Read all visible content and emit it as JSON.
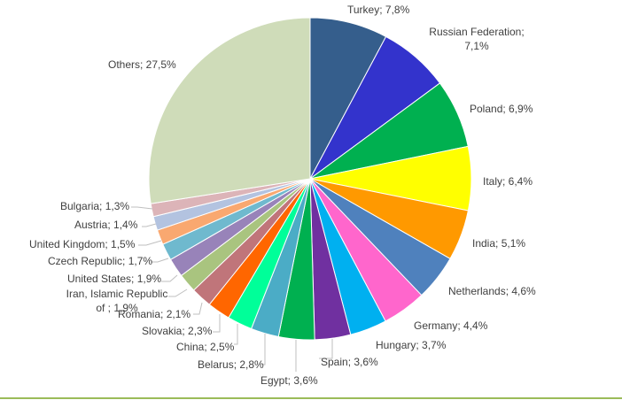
{
  "chart_data": {
    "type": "pie",
    "title": "",
    "center": [
      350,
      202
    ],
    "radius": 182,
    "start_angle_deg": 0,
    "direction": "clockwise",
    "slices": [
      {
        "label": "Turkey",
        "value": 7.8,
        "text": "Turkey; 7,8%",
        "color": "#355e8c"
      },
      {
        "label": "Russian Federation",
        "value": 7.1,
        "text": "Russian Federation; 7,1%",
        "color": "#3333cc"
      },
      {
        "label": "Poland",
        "value": 6.9,
        "text": "Poland; 6,9%",
        "color": "#00b050"
      },
      {
        "label": "Italy",
        "value": 6.4,
        "text": "Italy; 6,4%",
        "color": "#ffff00"
      },
      {
        "label": "India",
        "value": 5.1,
        "text": "India; 5,1%",
        "color": "#ff9900"
      },
      {
        "label": "Netherlands",
        "value": 4.6,
        "text": "Netherlands; 4,6%",
        "color": "#4f81bd"
      },
      {
        "label": "Germany",
        "value": 4.4,
        "text": "Germany; 4,4%",
        "color": "#ff66cc"
      },
      {
        "label": "Hungary",
        "value": 3.7,
        "text": "Hungary; 3,7%",
        "color": "#00b0f0"
      },
      {
        "label": "Spain",
        "value": 3.6,
        "text": "Spain; 3,6%",
        "color": "#7030a0"
      },
      {
        "label": "Egypt",
        "value": 3.6,
        "text": "Egypt; 3,6%",
        "color": "#00b050"
      },
      {
        "label": "Belarus",
        "value": 2.8,
        "text": "Belarus; 2,8%",
        "color": "#4bacc6"
      },
      {
        "label": "China",
        "value": 2.5,
        "text": "China; 2,5%",
        "color": "#00ff99"
      },
      {
        "label": "Slovakia",
        "value": 2.3,
        "text": "Slovakia; 2,3%",
        "color": "#ff6600"
      },
      {
        "label": "Romania",
        "value": 2.1,
        "text": "Romania; 2,1%",
        "color": "#c0757a"
      },
      {
        "label": "Iran, Islamic Republic of",
        "value": 1.9,
        "text": "Iran, Islamic Republic of ; 1,9%",
        "color": "#a9c47f"
      },
      {
        "label": "United States",
        "value": 1.9,
        "text": "United States; 1,9%",
        "color": "#9883b9"
      },
      {
        "label": "Czech Republic",
        "value": 1.7,
        "text": "Czech Republic; 1,7%",
        "color": "#6fb9ce"
      },
      {
        "label": "United Kingdom",
        "value": 1.5,
        "text": "United Kingdom; 1,5%",
        "color": "#f9a870"
      },
      {
        "label": "Austria",
        "value": 1.4,
        "text": "Austria; 1,4%",
        "color": "#b3c3e0"
      },
      {
        "label": "Bulgaria",
        "value": 1.3,
        "text": "Bulgaria; 1,3%",
        "color": "#dcb4b8"
      },
      {
        "label": "Others",
        "value": 27.5,
        "text": "Others; 27,5%",
        "color": "#cfdcb9"
      }
    ],
    "legend": "none",
    "data_labels": "category; value%"
  },
  "labels": {
    "turkey": "Turkey; 7,8%",
    "russia_1": "Russian Federation;",
    "russia_2": "7,1%",
    "poland": "Poland; 6,9%",
    "italy": "Italy; 6,4%",
    "india": "India; 5,1%",
    "netherlands": "Netherlands; 4,6%",
    "germany": "Germany; 4,4%",
    "hungary": "Hungary; 3,7%",
    "spain": "Spain; 3,6%",
    "egypt": "Egypt; 3,6%",
    "belarus": "Belarus; 2,8%",
    "china": "China; 2,5%",
    "slovakia": "Slovakia; 2,3%",
    "romania": "Romania; 2,1%",
    "iran_1": "Iran, Islamic Republic",
    "iran_2": "of ; 1,9%",
    "us": "United States; 1,9%",
    "czech": "Czech Republic; 1,7%",
    "uk": "United Kingdom; 1,5%",
    "austria": "Austria; 1,4%",
    "bulgaria": "Bulgaria; 1,3%",
    "others": "Others; 27,5%"
  },
  "colors": {
    "bottom_rule": "#9bbb59",
    "label_text": "#404040",
    "leader_line": "#bfbfbf"
  }
}
